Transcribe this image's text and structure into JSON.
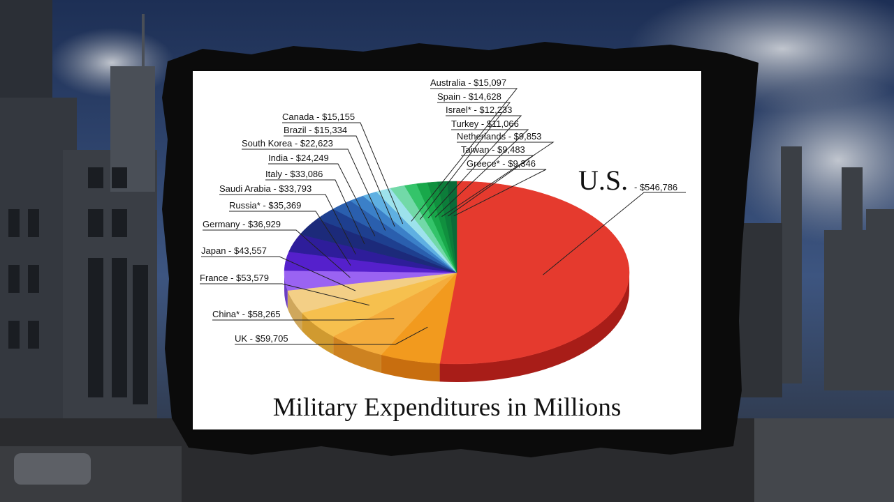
{
  "chart_data": {
    "type": "pie",
    "title": "Military Expenditures in Millions",
    "slices": [
      {
        "name": "U.S.",
        "label": "$546,786",
        "value": 546786,
        "color": "#e53a2e",
        "side": "#a81d18"
      },
      {
        "name": "UK",
        "label": "UK - $59,705",
        "value": 59705,
        "color": "#f29a1e",
        "side": "#c86e0f"
      },
      {
        "name": "China*",
        "label": "China* - $58,265",
        "value": 58265,
        "color": "#f4ac3c",
        "side": "#cd8220"
      },
      {
        "name": "France",
        "label": "France - $53,579",
        "value": 53579,
        "color": "#f6c04e",
        "side": "#d09a30"
      },
      {
        "name": "Japan",
        "label": "Japan - $43,557",
        "value": 43557,
        "color": "#f3cf86",
        "side": "#cfa75c"
      },
      {
        "name": "Germany",
        "label": "Germany - $36,929",
        "value": 36929,
        "color": "#9a63f2",
        "side": "#6c3ec4"
      },
      {
        "name": "Russia*",
        "label": "Russia* -  $35,369",
        "value": 35369,
        "color": "#5520cc",
        "side": "#3a1090"
      },
      {
        "name": "Saudi Arabia",
        "label": "Saudi Arabia - $33,793",
        "value": 33793,
        "color": "#2e1d9a",
        "side": "#1c1066"
      },
      {
        "name": "Italy",
        "label": "Italy - $33,086",
        "value": 33086,
        "color": "#1c2a7a",
        "side": "#101a55"
      },
      {
        "name": "India",
        "label": "India - $24,249",
        "value": 24249,
        "color": "#1e3f8f",
        "side": "#122a66"
      },
      {
        "name": "South Korea",
        "label": "South Korea - $22,623",
        "value": 22623,
        "color": "#2a5fae",
        "side": "#1a4080"
      },
      {
        "name": "Brazil",
        "label": "Brazil - $15,334",
        "value": 15334,
        "color": "#3b80c8",
        "side": "#235a96"
      },
      {
        "name": "Canada",
        "label": "Canada - $15,155",
        "value": 15155,
        "color": "#5fb0e2",
        "side": "#3a82b0"
      },
      {
        "name": "Australia",
        "label": "Australia - $15,097",
        "value": 15097,
        "color": "#9de2ec",
        "side": "#6ab4bf"
      },
      {
        "name": "Spain",
        "label": "Spain - $14,628",
        "value": 14628,
        "color": "#72d9a8",
        "side": "#48ae7e"
      },
      {
        "name": "Israel*",
        "label": "Israel* - $12,233",
        "value": 12233,
        "color": "#34c46a",
        "side": "#1f9447"
      },
      {
        "name": "Turkey",
        "label": "Turkey - $11,066",
        "value": 11066,
        "color": "#18a84a",
        "side": "#0d7a33"
      },
      {
        "name": "Netherlands",
        "label": "Netherlands - $9,853",
        "value": 9853,
        "color": "#10903e",
        "side": "#08692b"
      },
      {
        "name": "Taiwan",
        "label": "Taiwan - $9,483",
        "value": 9483,
        "color": "#0c7d3a",
        "side": "#055a27"
      },
      {
        "name": "Greece*",
        "label": "Greece* - $9,346",
        "value": 9346,
        "color": "#0a6a38",
        "side": "#044a24"
      }
    ]
  }
}
